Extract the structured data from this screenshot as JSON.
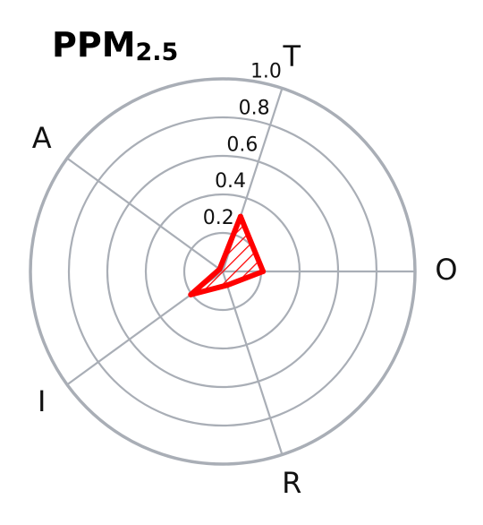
{
  "chart_data": {
    "type": "radar",
    "title": "PPM",
    "title_subscript": "2.5",
    "axes": [
      "T",
      "O",
      "R",
      "I",
      "A"
    ],
    "rlim": [
      0,
      1.0
    ],
    "ticks": [
      "0.2",
      "0.4",
      "0.6",
      "0.8",
      "1.0"
    ],
    "tick_values": [
      0.2,
      0.4,
      0.6,
      0.8,
      1.0
    ],
    "grid": true,
    "series": [
      {
        "values": [
          0.3,
          0.21,
          0.075,
          0.205,
          0.02
        ],
        "color": "#ff0000",
        "fill": "hatched"
      }
    ],
    "grid_color": "#a9aeb6"
  }
}
